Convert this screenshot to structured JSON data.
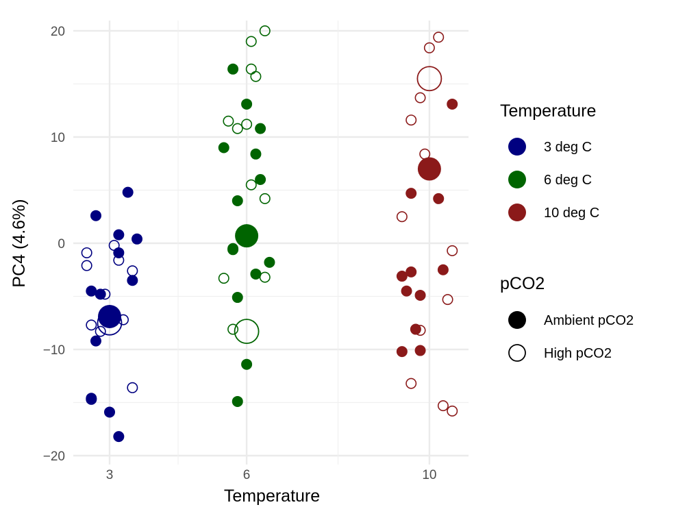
{
  "chart_data": {
    "type": "scatter",
    "xlabel": "Temperature",
    "ylabel": "PC4 (4.6%)",
    "ylim": [
      -20,
      20
    ],
    "yticks": [
      -20,
      -10,
      0,
      10,
      20
    ],
    "ytick_labels": [
      "−20",
      "−10",
      "0",
      "10",
      "20"
    ],
    "categories": [
      "3",
      "6",
      "10"
    ],
    "x_positions": [
      3,
      6,
      10
    ],
    "xlim": [
      2.1,
      11
    ],
    "grid": true,
    "legend_position": "right",
    "legends": {
      "color": {
        "title": "Temperature",
        "entries": [
          {
            "label": "3 deg C",
            "color": "#000080"
          },
          {
            "label": "6 deg C",
            "color": "#006400"
          },
          {
            "label": "10 deg C",
            "color": "#8B1A1A"
          }
        ]
      },
      "shape": {
        "title": "pCO2",
        "entries": [
          {
            "label": "Ambient pCO2",
            "filled": true
          },
          {
            "label": "High pCO2",
            "filled": false
          }
        ]
      }
    },
    "series": [
      {
        "temperature": "3 deg C",
        "color": "#000080",
        "pco2": "Ambient pCO2",
        "points": [
          [
            3.4,
            4.8
          ],
          [
            2.7,
            2.6
          ],
          [
            3.2,
            0.8
          ],
          [
            3.6,
            0.4
          ],
          [
            3.2,
            -0.9
          ],
          [
            3.5,
            -3.5
          ],
          [
            2.6,
            -4.5
          ],
          [
            2.8,
            -4.8
          ],
          [
            2.7,
            -9.2
          ],
          [
            2.6,
            -14.6
          ],
          [
            3.0,
            -15.9
          ],
          [
            3.2,
            -18.2
          ]
        ],
        "centroid": [
          3.0,
          -6.9
        ]
      },
      {
        "temperature": "3 deg C",
        "color": "#000080",
        "pco2": "High pCO2",
        "points": [
          [
            2.5,
            -0.9
          ],
          [
            3.1,
            -0.2
          ],
          [
            2.5,
            -2.1
          ],
          [
            3.2,
            -1.6
          ],
          [
            3.5,
            -2.6
          ],
          [
            2.9,
            -4.8
          ],
          [
            2.6,
            -7.7
          ],
          [
            2.8,
            -8.3
          ],
          [
            3.3,
            -7.2
          ],
          [
            2.6,
            -14.7
          ],
          [
            3.5,
            -13.6
          ]
        ],
        "centroid": [
          3.0,
          -7.5
        ]
      },
      {
        "temperature": "6 deg C",
        "color": "#006400",
        "pco2": "Ambient pCO2",
        "points": [
          [
            5.7,
            16.4
          ],
          [
            6.0,
            13.1
          ],
          [
            6.3,
            10.8
          ],
          [
            5.5,
            9.0
          ],
          [
            6.2,
            8.4
          ],
          [
            6.3,
            6.0
          ],
          [
            5.8,
            4.0
          ],
          [
            5.7,
            -0.6
          ],
          [
            6.5,
            -1.8
          ],
          [
            6.2,
            -2.9
          ],
          [
            5.8,
            -5.1
          ],
          [
            6.0,
            -11.4
          ],
          [
            5.8,
            -14.9
          ]
        ],
        "centroid": [
          6.0,
          0.7
        ]
      },
      {
        "temperature": "6 deg C",
        "color": "#006400",
        "pco2": "High pCO2",
        "points": [
          [
            6.4,
            20.0
          ],
          [
            6.1,
            19.0
          ],
          [
            6.1,
            16.4
          ],
          [
            6.2,
            15.7
          ],
          [
            5.6,
            11.5
          ],
          [
            6.0,
            11.2
          ],
          [
            5.8,
            10.8
          ],
          [
            6.1,
            5.5
          ],
          [
            6.4,
            4.2
          ],
          [
            5.7,
            -0.5
          ],
          [
            5.5,
            -3.3
          ],
          [
            6.4,
            -3.2
          ],
          [
            5.7,
            -8.1
          ]
        ],
        "centroid": [
          6.0,
          -8.3
        ]
      },
      {
        "temperature": "10 deg C",
        "color": "#8B1A1A",
        "pco2": "Ambient pCO2",
        "points": [
          [
            10.5,
            13.1
          ],
          [
            9.6,
            4.7
          ],
          [
            10.2,
            4.2
          ],
          [
            10.3,
            -2.5
          ],
          [
            9.6,
            -2.7
          ],
          [
            9.4,
            -3.1
          ],
          [
            9.5,
            -4.5
          ],
          [
            9.8,
            -4.9
          ],
          [
            9.7,
            -8.1
          ],
          [
            9.8,
            -10.1
          ],
          [
            9.4,
            -10.2
          ]
        ],
        "centroid": [
          10.0,
          7.0
        ]
      },
      {
        "temperature": "10 deg C",
        "color": "#8B1A1A",
        "pco2": "High pCO2",
        "points": [
          [
            10.2,
            19.4
          ],
          [
            10.0,
            18.4
          ],
          [
            9.8,
            13.7
          ],
          [
            9.6,
            11.6
          ],
          [
            9.9,
            8.4
          ],
          [
            9.4,
            2.5
          ],
          [
            10.5,
            -0.7
          ],
          [
            10.4,
            -5.3
          ],
          [
            9.8,
            -8.2
          ],
          [
            9.6,
            -13.2
          ],
          [
            10.3,
            -15.3
          ],
          [
            10.5,
            -15.8
          ]
        ],
        "centroid": [
          10.0,
          15.5
        ]
      }
    ]
  }
}
